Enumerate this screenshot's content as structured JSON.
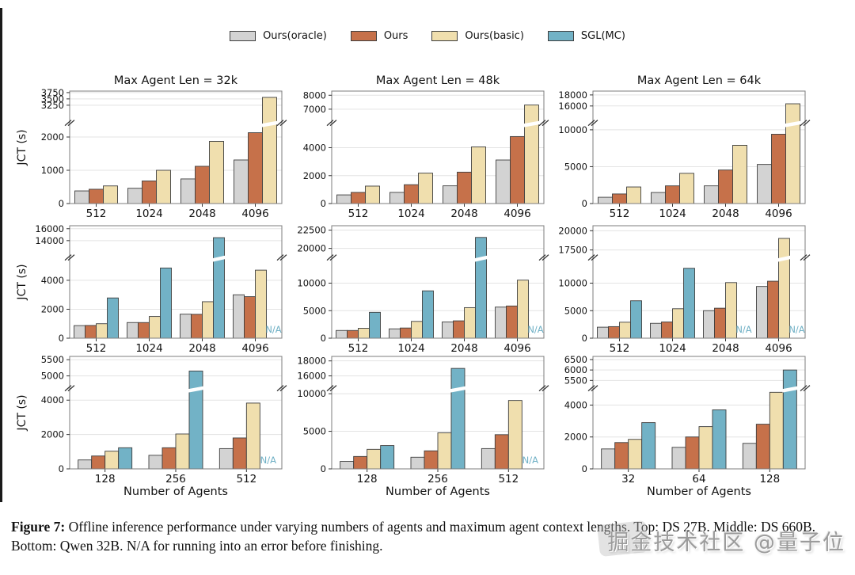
{
  "legend": {
    "items": [
      {
        "label": "Ours(oracle)",
        "color": "#d3d3d3"
      },
      {
        "label": "Ours",
        "color": "#c6714a"
      },
      {
        "label": "Ours(basic)",
        "color": "#f0dfae"
      },
      {
        "label": "SGL(MC)",
        "color": "#72b2c6"
      }
    ]
  },
  "colors": {
    "na_text": "#6fb0c5",
    "axis": "#7d7d7d",
    "grid": "#e3e3e3",
    "bar_edge": "#3f3f3f",
    "text": "#111111"
  },
  "caption": {
    "prefix": "Figure 7:",
    "body": " Offline inference performance under varying numbers of agents and maximum agent context lengths. Top: DS 27B. Middle: DS 660B. Bottom: Qwen 32B. N/A for running into an error before finishing."
  },
  "watermark": {
    "text": "掘金技术社区 @量子位"
  },
  "na_label": "N/A",
  "chart_data": [
    {
      "type": "bar",
      "title": "Max Agent Len = 32k",
      "ylabel": "JCT (s)",
      "xlabel": null,
      "categories": [
        "512",
        "1024",
        "2048",
        "4096"
      ],
      "series": [
        {
          "name": "Ours(oracle)",
          "values": [
            380,
            460,
            740,
            1310
          ]
        },
        {
          "name": "Ours",
          "values": [
            430,
            680,
            1120,
            2130
          ]
        },
        {
          "name": "Ours(basic)",
          "values": [
            530,
            1000,
            1870,
            3560
          ]
        }
      ],
      "axis_break": {
        "low_ticks": [
          0,
          1000,
          2000
        ],
        "low_max": 2350,
        "high_ticks": [
          3250,
          3500,
          3750
        ],
        "high_min": 2650,
        "high_max": 3810
      }
    },
    {
      "type": "bar",
      "title": "Max Agent Len = 48k",
      "ylabel": null,
      "xlabel": null,
      "categories": [
        "512",
        "1024",
        "2048",
        "4096"
      ],
      "series": [
        {
          "name": "Ours(oracle)",
          "values": [
            620,
            800,
            1270,
            3120
          ]
        },
        {
          "name": "Ours",
          "values": [
            800,
            1350,
            2250,
            4800
          ]
        },
        {
          "name": "Ours(basic)",
          "values": [
            1250,
            2180,
            4060,
            7300
          ]
        }
      ],
      "axis_break": {
        "low_ticks": [
          0,
          2000,
          4000
        ],
        "low_max": 5600,
        "high_ticks": [
          7000,
          8000
        ],
        "high_min": 6200,
        "high_max": 8300
      }
    },
    {
      "type": "bar",
      "title": "Max Agent Len = 64k",
      "ylabel": null,
      "xlabel": null,
      "categories": [
        "512",
        "1024",
        "2048",
        "4096"
      ],
      "series": [
        {
          "name": "Ours(oracle)",
          "values": [
            850,
            1500,
            2400,
            5300
          ]
        },
        {
          "name": "Ours",
          "values": [
            1300,
            2400,
            4550,
            9400
          ]
        },
        {
          "name": "Ours(basic)",
          "values": [
            2250,
            4100,
            7900,
            16400
          ]
        }
      ],
      "axis_break": {
        "low_ticks": [
          0,
          5000,
          10000
        ],
        "low_max": 10600,
        "high_ticks": [
          16000,
          18000
        ],
        "high_min": 13400,
        "high_max": 18700
      }
    },
    {
      "type": "bar",
      "title": null,
      "ylabel": "JCT (s)",
      "xlabel": null,
      "categories": [
        "512",
        "1024",
        "2048",
        "4096"
      ],
      "series": [
        {
          "name": "Ours(oracle)",
          "values": [
            870,
            1080,
            1660,
            3000
          ]
        },
        {
          "name": "Ours",
          "values": [
            880,
            1080,
            1650,
            2870
          ]
        },
        {
          "name": "Ours(basic)",
          "values": [
            1000,
            1500,
            2520,
            4700
          ]
        },
        {
          "name": "SGL(MC)",
          "values": [
            2780,
            4850,
            14500,
            "N/A"
          ]
        }
      ],
      "axis_break": {
        "low_ticks": [
          0,
          2000,
          4000
        ],
        "low_max": 5400,
        "high_ticks": [
          14000,
          16000
        ],
        "high_min": 11600,
        "high_max": 16500
      }
    },
    {
      "type": "bar",
      "title": null,
      "ylabel": null,
      "xlabel": null,
      "categories": [
        "512",
        "1024",
        "2048",
        "4096"
      ],
      "series": [
        {
          "name": "Ours(oracle)",
          "values": [
            1400,
            1700,
            2950,
            5650
          ]
        },
        {
          "name": "Ours",
          "values": [
            1400,
            1850,
            3150,
            5850
          ]
        },
        {
          "name": "Ours(basic)",
          "values": [
            1800,
            3050,
            5550,
            10550
          ]
        },
        {
          "name": "SGL(MC)",
          "values": [
            4700,
            8600,
            21500,
            "N/A"
          ]
        }
      ],
      "axis_break": {
        "low_ticks": [
          0,
          5000,
          10000
        ],
        "low_max": 14200,
        "high_ticks": [
          20000,
          22500
        ],
        "high_min": 19100,
        "high_max": 23100
      }
    },
    {
      "type": "bar",
      "title": null,
      "ylabel": null,
      "xlabel": null,
      "categories": [
        "512",
        "1024",
        "2048",
        "4096"
      ],
      "series": [
        {
          "name": "Ours(oracle)",
          "values": [
            2000,
            2700,
            5000,
            9400
          ]
        },
        {
          "name": "Ours",
          "values": [
            2100,
            2950,
            5450,
            10350
          ]
        },
        {
          "name": "Ours(basic)",
          "values": [
            2900,
            5350,
            10100,
            19000
          ]
        },
        {
          "name": "SGL(MC)",
          "values": [
            6800,
            12700,
            "N/A",
            "N/A"
          ]
        }
      ],
      "axis_break": {
        "low_ticks": [
          0,
          5000,
          10000
        ],
        "low_max": 14200,
        "high_ticks": [
          17500,
          20000
        ],
        "high_min": 16850,
        "high_max": 20650
      }
    },
    {
      "type": "bar",
      "title": null,
      "ylabel": "JCT (s)",
      "xlabel": "Number of Agents",
      "categories": [
        "128",
        "256",
        "512"
      ],
      "series": [
        {
          "name": "Ours(oracle)",
          "values": [
            520,
            790,
            1180
          ]
        },
        {
          "name": "Ours",
          "values": [
            750,
            1230,
            1800
          ]
        },
        {
          "name": "Ours(basic)",
          "values": [
            1030,
            2030,
            3830
          ]
        },
        {
          "name": "SGL(MC)",
          "values": [
            1230,
            5150,
            "N/A"
          ]
        }
      ],
      "axis_break": {
        "low_ticks": [
          0,
          2000,
          4000
        ],
        "low_max": 4550,
        "high_ticks": [
          5000,
          5500
        ],
        "high_min": 4700,
        "high_max": 5600
      }
    },
    {
      "type": "bar",
      "title": null,
      "ylabel": null,
      "xlabel": "Number of Agents",
      "categories": [
        "128",
        "256",
        "512"
      ],
      "series": [
        {
          "name": "Ours(oracle)",
          "values": [
            1000,
            1550,
            2700
          ]
        },
        {
          "name": "Ours",
          "values": [
            1650,
            2400,
            4550
          ]
        },
        {
          "name": "Ours(basic)",
          "values": [
            2600,
            4800,
            9100
          ]
        },
        {
          "name": "SGL(MC)",
          "values": [
            3100,
            17000,
            "N/A"
          ]
        }
      ],
      "axis_break": {
        "low_ticks": [
          0,
          5000,
          10000
        ],
        "low_max": 10400,
        "high_ticks": [
          16000,
          18000
        ],
        "high_min": 14700,
        "high_max": 18600
      }
    },
    {
      "type": "bar",
      "title": null,
      "ylabel": null,
      "xlabel": "Number of Agents",
      "categories": [
        "32",
        "64",
        "128"
      ],
      "series": [
        {
          "name": "Ours(oracle)",
          "values": [
            1250,
            1350,
            1600
          ]
        },
        {
          "name": "Ours",
          "values": [
            1650,
            2000,
            2800
          ]
        },
        {
          "name": "Ours(basic)",
          "values": [
            1850,
            2650,
            4800
          ]
        },
        {
          "name": "SGL(MC)",
          "values": [
            2900,
            3700,
            6000
          ]
        }
      ],
      "axis_break": {
        "low_ticks": [
          0,
          2000,
          4000
        ],
        "low_max": 4900,
        "high_ticks": [
          5500,
          6000,
          6500
        ],
        "high_min": 5250,
        "high_max": 6650
      }
    }
  ]
}
